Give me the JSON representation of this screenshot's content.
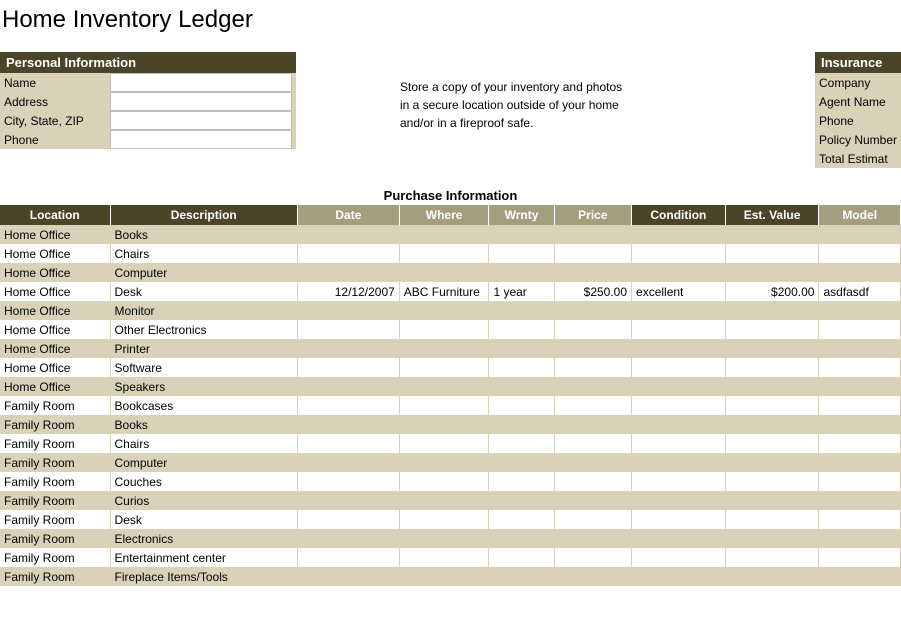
{
  "title": "Home Inventory Ledger",
  "personal_info": {
    "header": "Personal Information",
    "fields": [
      {
        "label": "Name"
      },
      {
        "label": "Address"
      },
      {
        "label": "City, State, ZIP"
      },
      {
        "label": "Phone"
      }
    ]
  },
  "note": {
    "line1": "Store a copy of your inventory and photos",
    "line2": "in a secure location outside of your home",
    "line3": "and/or in a fireproof safe."
  },
  "insurance": {
    "header": "Insurance",
    "fields": [
      {
        "label": "Company"
      },
      {
        "label": "Agent Name"
      },
      {
        "label": "Phone"
      },
      {
        "label": "Policy Number"
      },
      {
        "label": "Total Estimat"
      }
    ]
  },
  "purchase_section_title": "Purchase Information",
  "table": {
    "headers": {
      "location": "Location",
      "description": "Description",
      "date": "Date",
      "where": "Where",
      "wrnty": "Wrnty",
      "price": "Price",
      "condition": "Condition",
      "est_value": "Est. Value",
      "model": "Model"
    },
    "rows": [
      {
        "location": "Home Office",
        "description": "Books",
        "date": "",
        "where": "",
        "wrnty": "",
        "price": "",
        "condition": "",
        "est_value": "",
        "model": ""
      },
      {
        "location": "Home Office",
        "description": "Chairs",
        "date": "",
        "where": "",
        "wrnty": "",
        "price": "",
        "condition": "",
        "est_value": "",
        "model": ""
      },
      {
        "location": "Home Office",
        "description": "Computer",
        "date": "",
        "where": "",
        "wrnty": "",
        "price": "",
        "condition": "",
        "est_value": "",
        "model": ""
      },
      {
        "location": "Home Office",
        "description": "Desk",
        "date": "12/12/2007",
        "where": "ABC Furniture",
        "wrnty": "1 year",
        "price": "$250.00",
        "condition": "excellent",
        "est_value": "$200.00",
        "model": "asdfasdf"
      },
      {
        "location": "Home Office",
        "description": "Monitor",
        "date": "",
        "where": "",
        "wrnty": "",
        "price": "",
        "condition": "",
        "est_value": "",
        "model": ""
      },
      {
        "location": "Home Office",
        "description": "Other Electronics",
        "date": "",
        "where": "",
        "wrnty": "",
        "price": "",
        "condition": "",
        "est_value": "",
        "model": ""
      },
      {
        "location": "Home Office",
        "description": "Printer",
        "date": "",
        "where": "",
        "wrnty": "",
        "price": "",
        "condition": "",
        "est_value": "",
        "model": ""
      },
      {
        "location": "Home Office",
        "description": "Software",
        "date": "",
        "where": "",
        "wrnty": "",
        "price": "",
        "condition": "",
        "est_value": "",
        "model": ""
      },
      {
        "location": "Home Office",
        "description": "Speakers",
        "date": "",
        "where": "",
        "wrnty": "",
        "price": "",
        "condition": "",
        "est_value": "",
        "model": ""
      },
      {
        "location": "Family Room",
        "description": "Bookcases",
        "date": "",
        "where": "",
        "wrnty": "",
        "price": "",
        "condition": "",
        "est_value": "",
        "model": ""
      },
      {
        "location": "Family Room",
        "description": "Books",
        "date": "",
        "where": "",
        "wrnty": "",
        "price": "",
        "condition": "",
        "est_value": "",
        "model": ""
      },
      {
        "location": "Family Room",
        "description": "Chairs",
        "date": "",
        "where": "",
        "wrnty": "",
        "price": "",
        "condition": "",
        "est_value": "",
        "model": ""
      },
      {
        "location": "Family Room",
        "description": "Computer",
        "date": "",
        "where": "",
        "wrnty": "",
        "price": "",
        "condition": "",
        "est_value": "",
        "model": ""
      },
      {
        "location": "Family Room",
        "description": "Couches",
        "date": "",
        "where": "",
        "wrnty": "",
        "price": "",
        "condition": "",
        "est_value": "",
        "model": ""
      },
      {
        "location": "Family Room",
        "description": "Curios",
        "date": "",
        "where": "",
        "wrnty": "",
        "price": "",
        "condition": "",
        "est_value": "",
        "model": ""
      },
      {
        "location": "Family Room",
        "description": "Desk",
        "date": "",
        "where": "",
        "wrnty": "",
        "price": "",
        "condition": "",
        "est_value": "",
        "model": ""
      },
      {
        "location": "Family Room",
        "description": "Electronics",
        "date": "",
        "where": "",
        "wrnty": "",
        "price": "",
        "condition": "",
        "est_value": "",
        "model": ""
      },
      {
        "location": "Family Room",
        "description": "Entertainment center",
        "date": "",
        "where": "",
        "wrnty": "",
        "price": "",
        "condition": "",
        "est_value": "",
        "model": ""
      },
      {
        "location": "Family Room",
        "description": "Fireplace Items/Tools",
        "date": "",
        "where": "",
        "wrnty": "",
        "price": "",
        "condition": "",
        "est_value": "",
        "model": ""
      }
    ]
  },
  "colors": {
    "header_bg": "#4a4528",
    "header_fg": "#ffffff",
    "alt_header_bg": "#a39e7e",
    "shade_bg": "#d9d2b9",
    "plain_bg": "#ffffff"
  }
}
